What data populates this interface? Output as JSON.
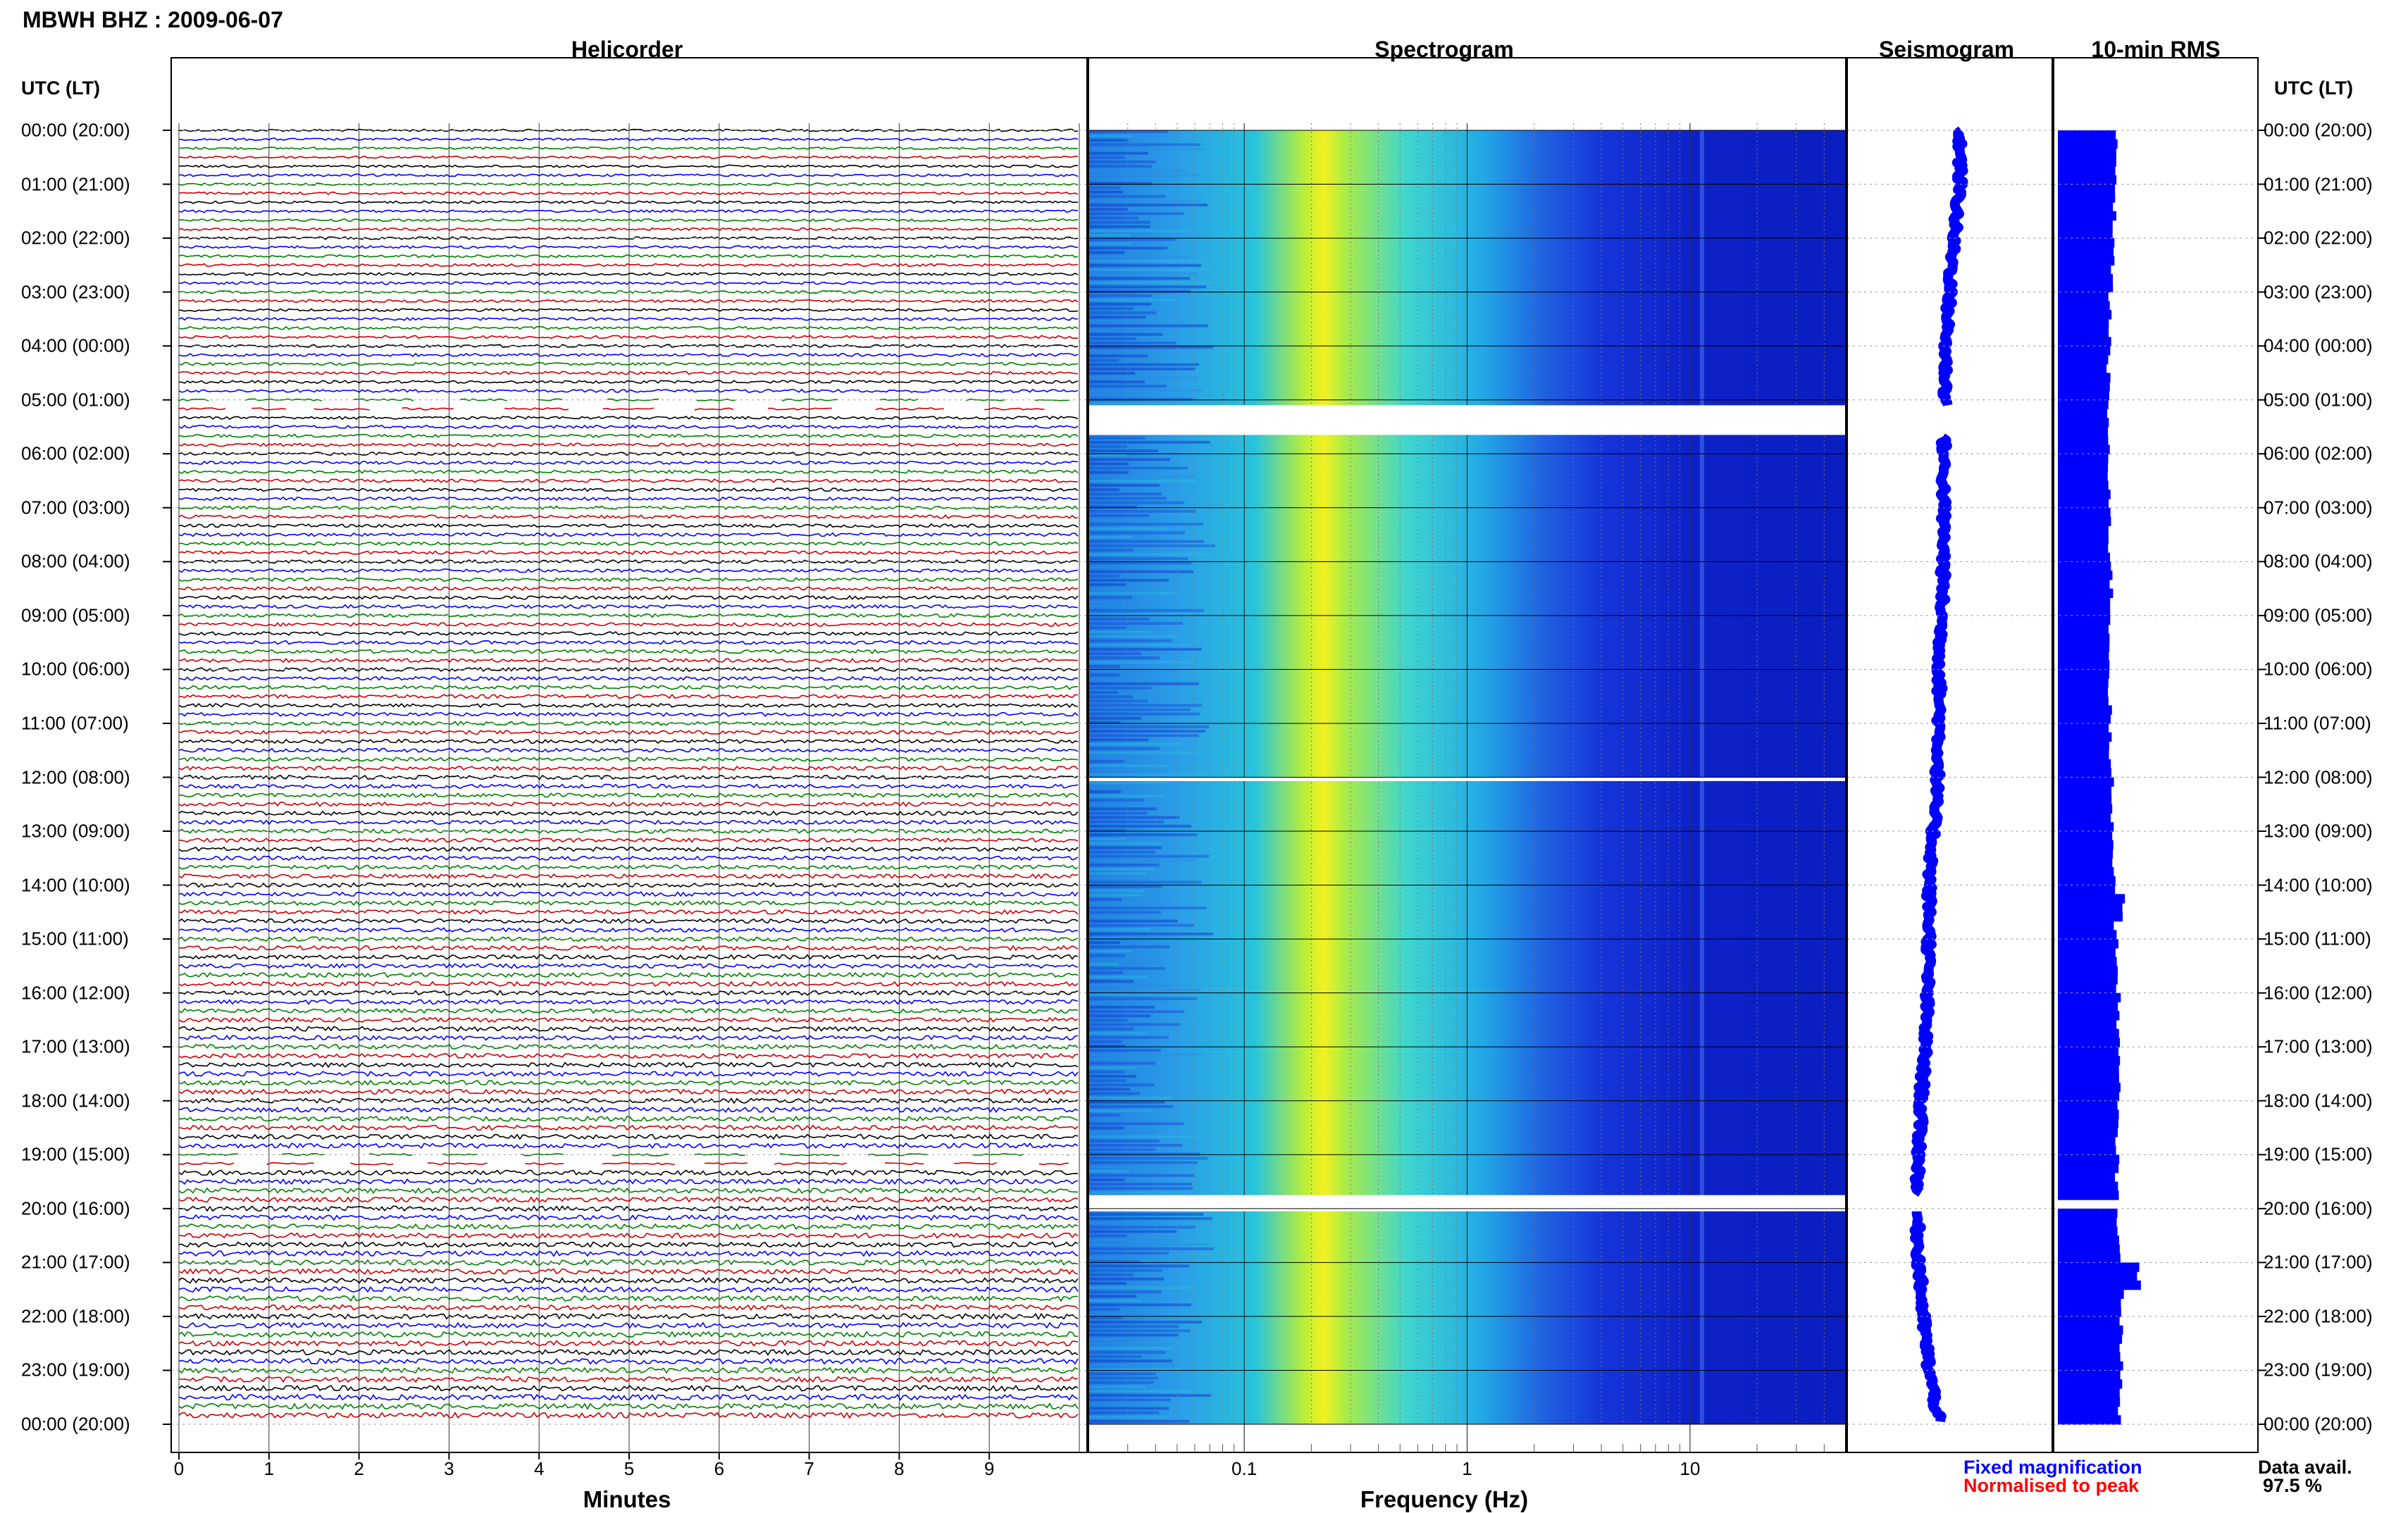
{
  "title": "MBWH BHZ : 2009-06-07",
  "panels": {
    "helicorder": "Helicorder",
    "spectrogram": "Spectrogram",
    "seismogram": "Seismogram",
    "rms": "10-min RMS"
  },
  "axis_labels": {
    "utc_left": "UTC (LT)",
    "utc_right": "UTC (LT)",
    "minutes": "Minutes",
    "frequency": "Frequency (Hz)"
  },
  "legend": {
    "fixed": "Fixed magnification",
    "normalised": "Normalised to peak",
    "fixed_color": "#0000ff",
    "normalised_color": "#ff0000"
  },
  "data_availability": {
    "label": "Data avail.",
    "value": "97.5 %"
  },
  "colors": {
    "trace_colors": [
      "#000000",
      "#0000ff",
      "#008000",
      "#cc0000"
    ],
    "spectrogram_low": "#1a2ee0",
    "spectrogram_mid": "#22d4d8",
    "spectrogram_peak": "#f4f020",
    "bar_fill": "#0000ff"
  },
  "chart_data": [
    {
      "type": "line",
      "panel": "Helicorder",
      "ylabels": [
        "00:00 (20:00)",
        "01:00 (21:00)",
        "02:00 (22:00)",
        "03:00 (23:00)",
        "04:00 (00:00)",
        "05:00 (01:00)",
        "06:00 (02:00)",
        "07:00 (03:00)",
        "08:00 (04:00)",
        "09:00 (05:00)",
        "10:00 (06:00)",
        "11:00 (07:00)",
        "12:00 (08:00)",
        "13:00 (09:00)",
        "14:00 (10:00)",
        "15:00 (11:00)",
        "16:00 (12:00)",
        "17:00 (13:00)",
        "18:00 (14:00)",
        "19:00 (15:00)",
        "20:00 (16:00)",
        "21:00 (17:00)",
        "22:00 (18:00)",
        "23:00 (19:00)",
        "00:00 (20:00)"
      ],
      "xticks": [
        "0",
        "1",
        "2",
        "3",
        "4",
        "5",
        "6",
        "7",
        "8",
        "9"
      ],
      "xlabel": "Minutes",
      "xlim": [
        0,
        10
      ],
      "rows": 144,
      "gap_row_ranges": [
        [
          30,
          31
        ],
        [
          114,
          115
        ]
      ]
    },
    {
      "type": "heatmap",
      "panel": "Spectrogram",
      "x_scale": "log",
      "xlim": [
        0.02,
        50
      ],
      "xticks": [
        "0.1",
        "1",
        "10"
      ],
      "xlabel": "Frequency (Hz)",
      "peak_frequency_hz": 0.25,
      "gap_hours": [
        [
          5.1,
          5.65
        ],
        [
          12.0,
          12.07
        ],
        [
          19.75,
          20.05
        ]
      ]
    },
    {
      "type": "line",
      "panel": "Seismogram",
      "hours": [
        0,
        1,
        2,
        3,
        4,
        5,
        6,
        7,
        8,
        9,
        10,
        11,
        12,
        13,
        14,
        15,
        16,
        17,
        18,
        19,
        20,
        21,
        22,
        23,
        24
      ],
      "offset": [
        0.55,
        0.55,
        0.52,
        0.5,
        0.48,
        0.48,
        0.47,
        0.47,
        0.47,
        0.46,
        0.45,
        0.45,
        0.44,
        0.42,
        0.4,
        0.4,
        0.39,
        0.38,
        0.36,
        0.35,
        0.34,
        0.35,
        0.37,
        0.4,
        0.45
      ],
      "gap_hours": [
        [
          5.1,
          5.65
        ],
        [
          19.75,
          20.05
        ]
      ]
    },
    {
      "type": "bar",
      "panel": "10-min RMS",
      "hours": [
        0,
        1,
        2,
        3,
        4,
        5,
        6,
        7,
        8,
        9,
        10,
        11,
        12,
        13,
        14,
        15,
        16,
        17,
        18,
        19,
        20,
        21,
        22,
        23
      ],
      "values": [
        0.6,
        0.58,
        0.56,
        0.52,
        0.5,
        0.5,
        0.5,
        0.52,
        0.54,
        0.52,
        0.52,
        0.52,
        0.55,
        0.58,
        0.6,
        0.62,
        0.64,
        0.64,
        0.62,
        0.62,
        0.64,
        0.7,
        0.68,
        0.66
      ],
      "gap_hours": [
        [
          19.75,
          20.05
        ]
      ]
    }
  ]
}
